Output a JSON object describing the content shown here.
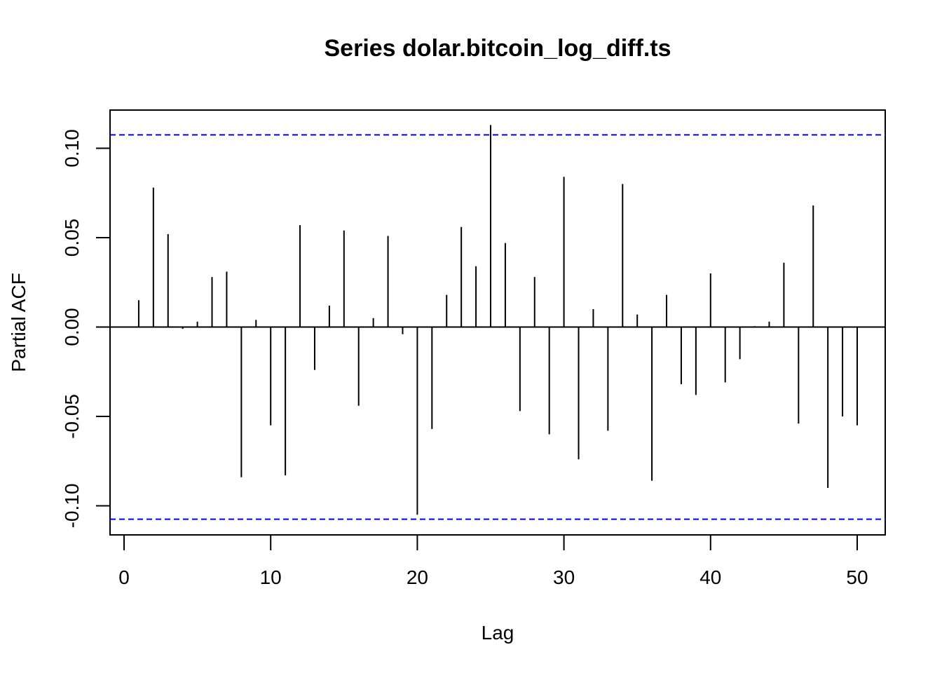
{
  "chart_data": {
    "type": "bar",
    "title": "Series  dolar.bitcoin_log_diff.ts",
    "xlabel": "Lag",
    "ylabel": "Partial ACF",
    "xlim": [
      0,
      51
    ],
    "ylim": [
      -0.115,
      0.118
    ],
    "x_ticks": [
      0,
      10,
      20,
      30,
      40,
      50
    ],
    "x_tick_labels": [
      "0",
      "10",
      "20",
      "30",
      "40",
      "50"
    ],
    "y_ticks": [
      -0.1,
      -0.05,
      0.0,
      0.05,
      0.1
    ],
    "y_tick_labels": [
      "-0.10",
      "-0.05",
      "0.00",
      "0.05",
      "0.10"
    ],
    "confidence_bound": 0.1075,
    "zero_line": true,
    "colors": {
      "bars": "#000000",
      "ci_line": "#0000ff",
      "frame": "#000000"
    },
    "lags": [
      1,
      2,
      3,
      4,
      5,
      6,
      7,
      8,
      9,
      10,
      11,
      12,
      13,
      14,
      15,
      16,
      17,
      18,
      19,
      20,
      21,
      22,
      23,
      24,
      25,
      26,
      27,
      28,
      29,
      30,
      31,
      32,
      33,
      34,
      35,
      36,
      37,
      38,
      39,
      40,
      41,
      42,
      43,
      44,
      45,
      46,
      47,
      48,
      49,
      50
    ],
    "values": [
      0.015,
      0.078,
      0.052,
      -0.001,
      0.003,
      0.028,
      0.031,
      -0.084,
      0.004,
      -0.055,
      -0.083,
      0.057,
      -0.024,
      0.012,
      0.054,
      -0.044,
      0.005,
      0.051,
      -0.004,
      -0.105,
      -0.057,
      0.018,
      0.056,
      0.034,
      0.113,
      0.047,
      -0.047,
      0.028,
      -0.06,
      0.084,
      -0.074,
      0.01,
      -0.058,
      0.08,
      0.007,
      -0.086,
      0.018,
      -0.032,
      -0.038,
      0.03,
      -0.031,
      -0.018,
      0.0005,
      0.003,
      0.036,
      -0.054,
      0.068,
      -0.09,
      -0.05,
      -0.055
    ]
  }
}
